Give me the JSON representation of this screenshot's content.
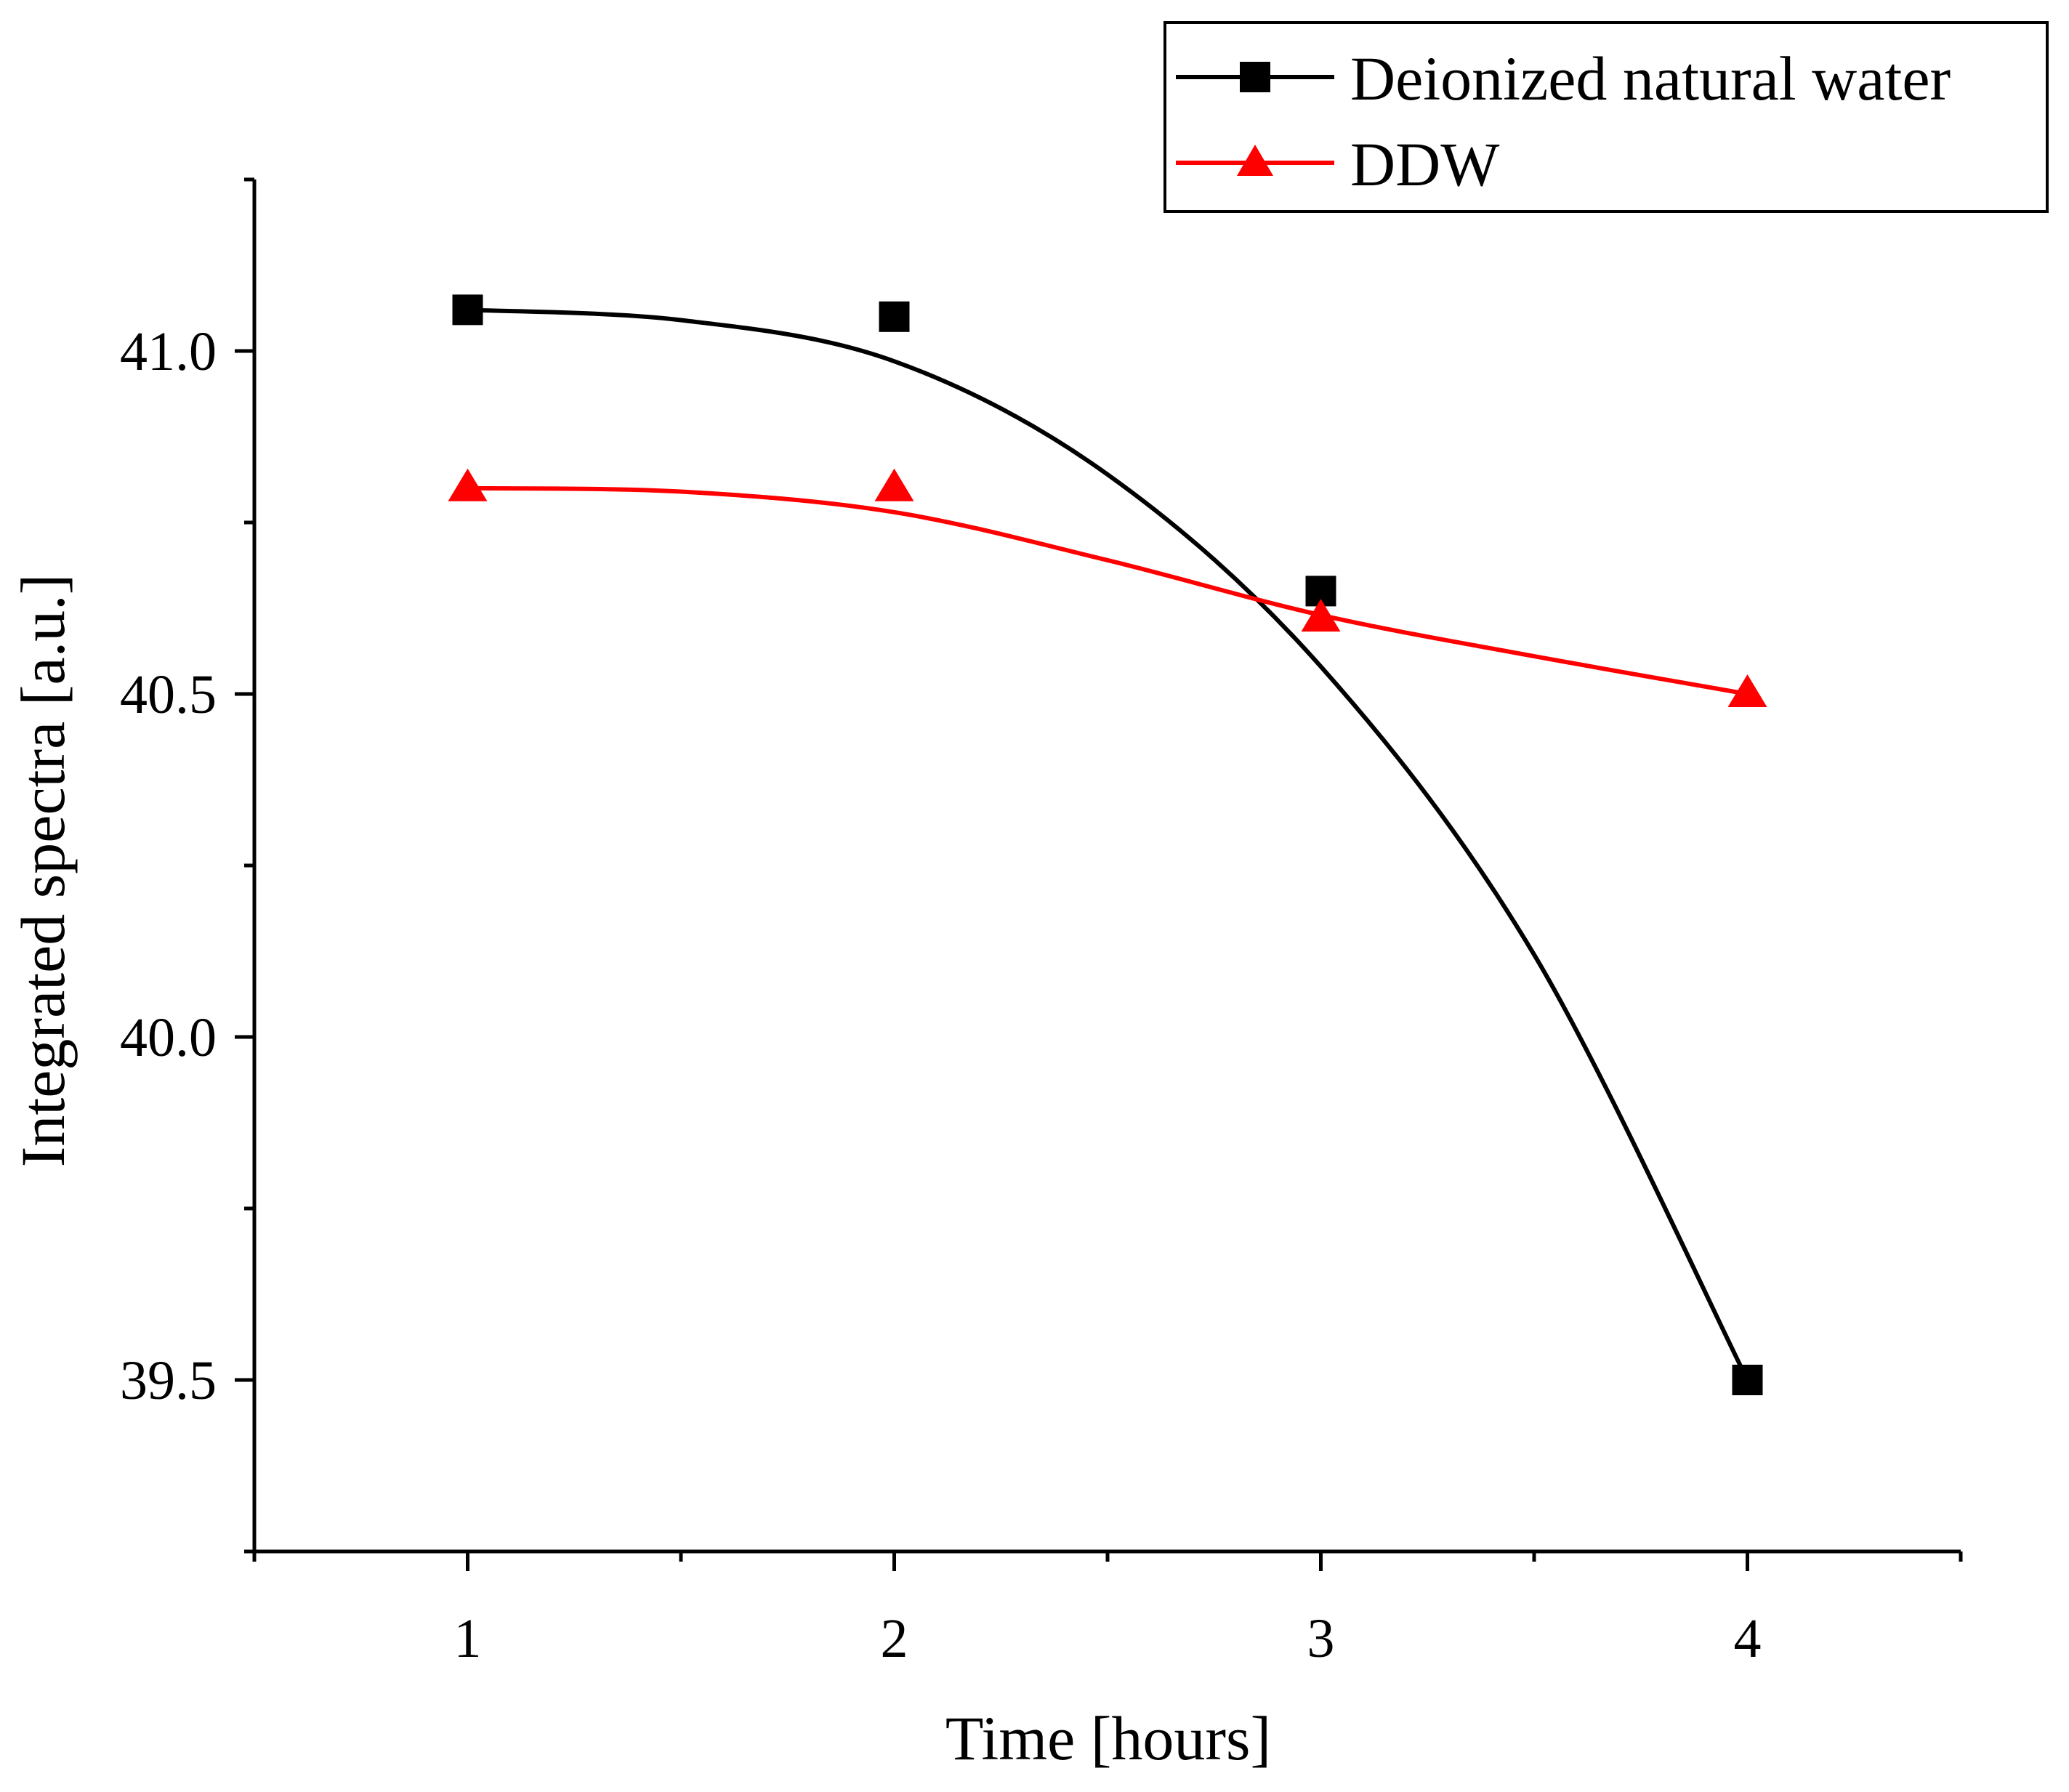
{
  "chart_data": {
    "type": "line",
    "title": "",
    "xlabel": "Time [hours]",
    "ylabel": "Integrated spectra [a.u.]",
    "xlim": [
      0.5,
      4.5
    ],
    "ylim": [
      39.25,
      41.25
    ],
    "x_ticks": [
      1,
      2,
      3,
      4
    ],
    "x_tick_labels": [
      "1",
      "2",
      "3",
      "4"
    ],
    "x_minor_ticks": [
      0.5,
      1.5,
      2.5,
      3.5,
      4.5
    ],
    "y_ticks": [
      39.5,
      40.0,
      40.5,
      41.0
    ],
    "y_tick_labels": [
      "39.5",
      "40.0",
      "40.5",
      "41.0"
    ],
    "y_minor_ticks": [
      39.25,
      39.75,
      40.25,
      40.75,
      41.25
    ],
    "grid": false,
    "legend_position": "top-right",
    "series": [
      {
        "name": "Deionized natural water",
        "color": "#000000",
        "marker": "square",
        "x": [
          1,
          2,
          3,
          4
        ],
        "values": [
          41.06,
          41.05,
          40.65,
          39.5
        ],
        "fit_x": [
          1,
          1.5,
          2,
          2.5,
          3,
          3.5,
          4
        ],
        "fit_y": [
          41.06,
          41.045,
          40.985,
          40.82,
          40.54,
          40.12,
          39.5
        ]
      },
      {
        "name": "DDW",
        "color": "#ff0000",
        "marker": "triangle",
        "x": [
          1,
          2,
          3,
          4
        ],
        "values": [
          40.8,
          40.8,
          40.61,
          40.5
        ],
        "fit_x": [
          1,
          1.5,
          2,
          2.5,
          3,
          3.5,
          4
        ],
        "fit_y": [
          40.8,
          40.795,
          40.765,
          40.695,
          40.615,
          40.555,
          40.5
        ]
      }
    ]
  }
}
